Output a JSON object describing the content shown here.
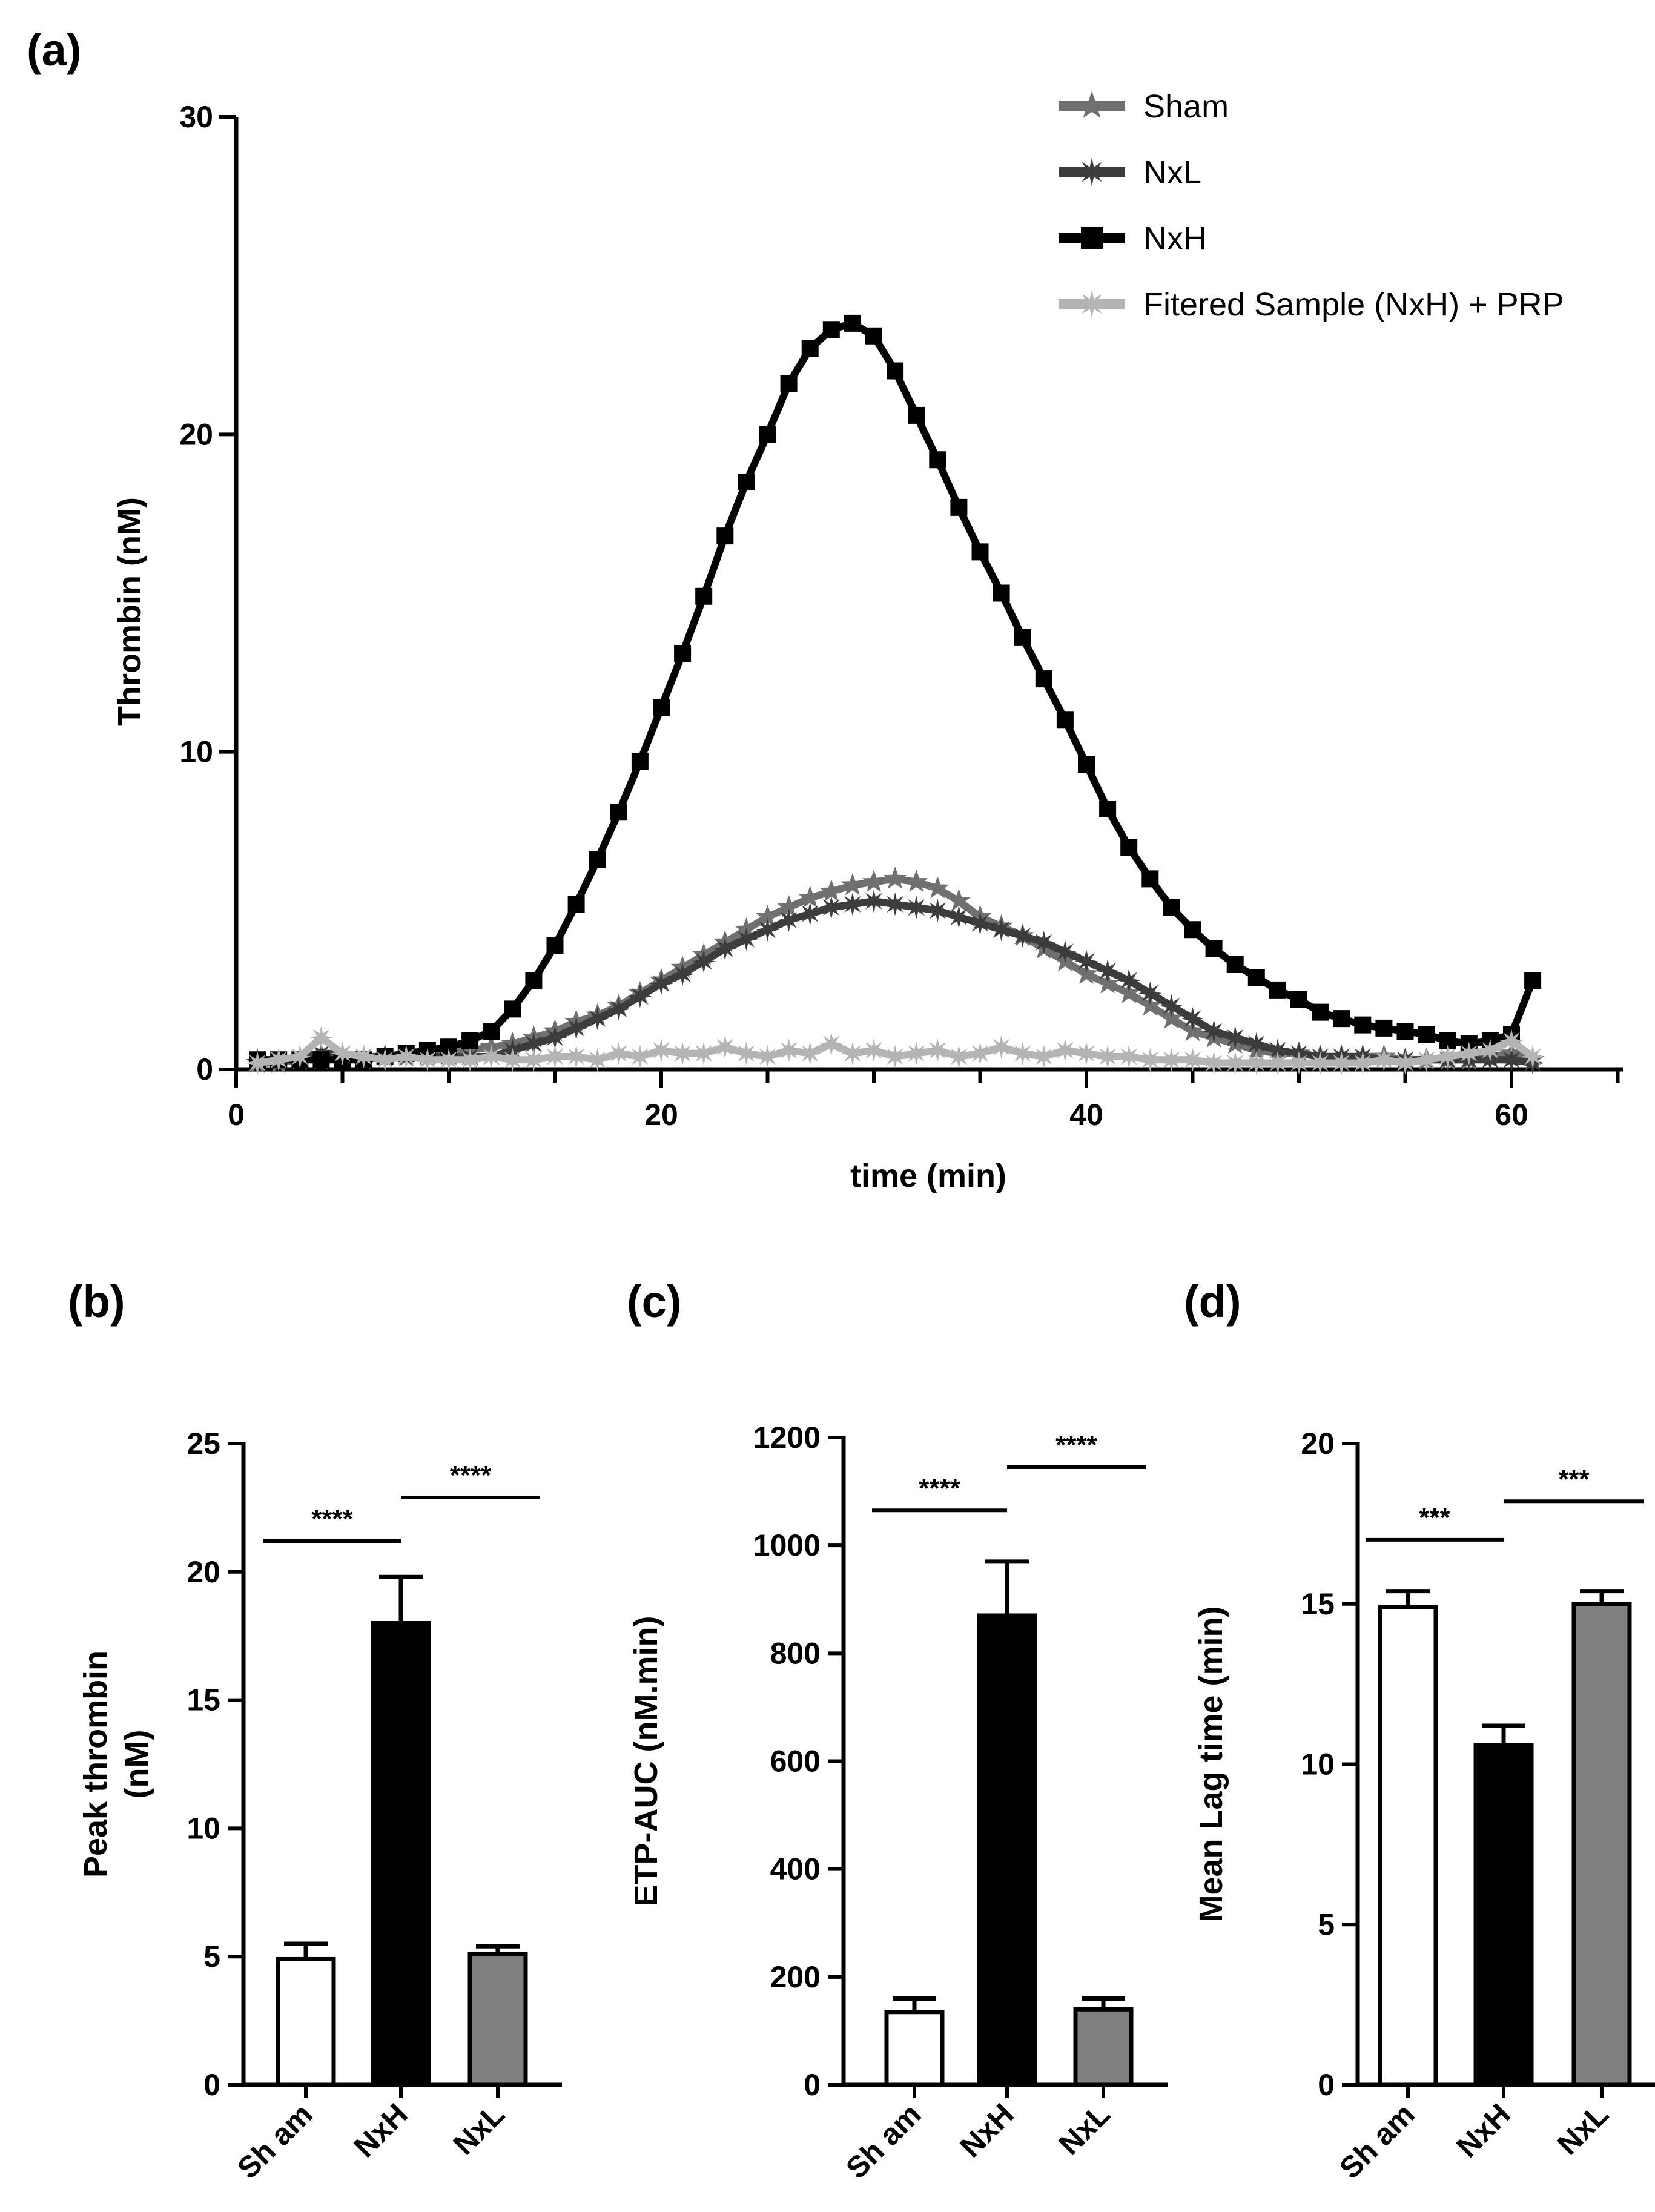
{
  "chart_data": [
    {
      "panel": "(a)",
      "type": "line",
      "xlabel": "time (min)",
      "ylabel": "Thrombin (nM)",
      "xlim": [
        0,
        65
      ],
      "ylim": [
        0,
        30
      ],
      "xticks": [
        0,
        20,
        40,
        60
      ],
      "yticks": [
        0,
        10,
        20,
        30
      ],
      "grid": false,
      "legend_position": "top-right",
      "series": [
        {
          "name": "Sham",
          "color": "#707070",
          "marker": "star",
          "x": [
            1,
            2,
            3,
            4,
            5,
            6,
            7,
            8,
            9,
            10,
            11,
            12,
            13,
            14,
            15,
            16,
            17,
            18,
            19,
            20,
            21,
            22,
            23,
            24,
            25,
            26,
            27,
            28,
            29,
            30,
            31,
            32,
            33,
            34,
            35,
            36,
            37,
            38,
            39,
            40,
            41,
            42,
            43,
            44,
            45,
            46,
            47,
            48,
            49,
            50,
            51,
            52,
            53,
            54,
            55,
            56,
            57,
            58,
            59,
            60,
            61
          ],
          "y": [
            0.2,
            0.2,
            0.3,
            0.3,
            0.4,
            0.3,
            0.4,
            0.4,
            0.5,
            0.5,
            0.6,
            0.7,
            0.8,
            1.0,
            1.2,
            1.5,
            1.7,
            2.0,
            2.4,
            2.8,
            3.2,
            3.6,
            4.0,
            4.4,
            4.8,
            5.1,
            5.4,
            5.6,
            5.8,
            5.9,
            6.0,
            5.9,
            5.7,
            5.3,
            4.8,
            4.5,
            4.2,
            3.8,
            3.4,
            3.0,
            2.7,
            2.4,
            2.0,
            1.6,
            1.2,
            1.0,
            0.8,
            0.6,
            0.5,
            0.5,
            0.4,
            0.4,
            0.4,
            0.4,
            0.3,
            0.3,
            0.3,
            0.3,
            0.4,
            0.5,
            0.3
          ]
        },
        {
          "name": "NxL",
          "color": "#3c3c3c",
          "marker": "asterisk",
          "x": [
            1,
            2,
            3,
            4,
            5,
            6,
            7,
            8,
            9,
            10,
            11,
            12,
            13,
            14,
            15,
            16,
            17,
            18,
            19,
            20,
            21,
            22,
            23,
            24,
            25,
            26,
            27,
            28,
            29,
            30,
            31,
            32,
            33,
            34,
            35,
            36,
            37,
            38,
            39,
            40,
            41,
            42,
            43,
            44,
            45,
            46,
            47,
            48,
            49,
            50,
            51,
            52,
            53,
            54,
            55,
            56,
            57,
            58,
            59,
            60,
            61
          ],
          "y": [
            0.3,
            0.3,
            0.4,
            0.5,
            0.5,
            0.4,
            0.4,
            0.4,
            0.4,
            0.4,
            0.4,
            0.4,
            0.6,
            0.8,
            1.0,
            1.3,
            1.6,
            1.9,
            2.3,
            2.7,
            3.0,
            3.4,
            3.8,
            4.1,
            4.4,
            4.7,
            4.9,
            5.1,
            5.2,
            5.3,
            5.2,
            5.1,
            5.0,
            4.8,
            4.6,
            4.4,
            4.2,
            4.0,
            3.7,
            3.4,
            3.1,
            2.8,
            2.4,
            2.0,
            1.6,
            1.2,
            1.0,
            0.8,
            0.6,
            0.5,
            0.4,
            0.4,
            0.4,
            0.3,
            0.3,
            0.3,
            0.3,
            0.3,
            0.3,
            0.3,
            0.2
          ]
        },
        {
          "name": "NxH",
          "color": "#000000",
          "marker": "square",
          "x": [
            1,
            2,
            3,
            4,
            5,
            6,
            7,
            8,
            9,
            10,
            11,
            12,
            13,
            14,
            15,
            16,
            17,
            18,
            19,
            20,
            21,
            22,
            23,
            24,
            25,
            26,
            27,
            28,
            29,
            30,
            31,
            32,
            33,
            34,
            35,
            36,
            37,
            38,
            39,
            40,
            41,
            42,
            43,
            44,
            45,
            46,
            47,
            48,
            49,
            50,
            51,
            52,
            53,
            54,
            55,
            56,
            57,
            58,
            59,
            60,
            61
          ],
          "y": [
            0.3,
            0.3,
            0.3,
            0.3,
            0.3,
            0.3,
            0.4,
            0.5,
            0.6,
            0.7,
            0.9,
            1.2,
            1.9,
            2.8,
            3.9,
            5.2,
            6.6,
            8.1,
            9.7,
            11.4,
            13.1,
            14.9,
            16.8,
            18.5,
            20.0,
            21.6,
            22.7,
            23.3,
            23.5,
            23.1,
            22.0,
            20.6,
            19.2,
            17.7,
            16.3,
            15.0,
            13.6,
            12.3,
            11.0,
            9.6,
            8.2,
            7.0,
            6.0,
            5.1,
            4.4,
            3.8,
            3.3,
            2.9,
            2.5,
            2.2,
            1.8,
            1.6,
            1.4,
            1.3,
            1.2,
            1.1,
            0.9,
            0.8,
            0.9,
            1.1,
            2.8
          ]
        },
        {
          "name": "Fitered Sample (NxH) + PRP",
          "color": "#b4b4b4",
          "marker": "asterisk",
          "x": [
            1,
            2,
            3,
            4,
            5,
            6,
            7,
            8,
            9,
            10,
            11,
            12,
            13,
            14,
            15,
            16,
            17,
            18,
            19,
            20,
            21,
            22,
            23,
            24,
            25,
            26,
            27,
            28,
            29,
            30,
            31,
            32,
            33,
            34,
            35,
            36,
            37,
            38,
            39,
            40,
            41,
            42,
            43,
            44,
            45,
            46,
            47,
            48,
            49,
            50,
            51,
            52,
            53,
            54,
            55,
            56,
            57,
            58,
            59,
            60,
            61
          ],
          "y": [
            0.2,
            0.3,
            0.4,
            1.0,
            0.5,
            0.4,
            0.3,
            0.4,
            0.3,
            0.3,
            0.3,
            0.4,
            0.3,
            0.3,
            0.4,
            0.4,
            0.3,
            0.5,
            0.4,
            0.6,
            0.5,
            0.5,
            0.7,
            0.5,
            0.4,
            0.6,
            0.5,
            0.8,
            0.5,
            0.6,
            0.4,
            0.5,
            0.6,
            0.4,
            0.5,
            0.7,
            0.5,
            0.4,
            0.6,
            0.5,
            0.4,
            0.4,
            0.3,
            0.3,
            0.3,
            0.2,
            0.2,
            0.2,
            0.2,
            0.2,
            0.2,
            0.2,
            0.2,
            0.3,
            0.2,
            0.3,
            0.4,
            0.5,
            0.6,
            0.9,
            0.4
          ]
        }
      ]
    },
    {
      "panel": "(b)",
      "type": "bar",
      "ylabel": [
        "Peak thrombin",
        "(nM)"
      ],
      "xlabel": "",
      "ylim": [
        0,
        25
      ],
      "yticks": [
        0,
        5,
        10,
        15,
        20,
        25
      ],
      "categories": [
        "Sh am",
        "NxH",
        "NxL"
      ],
      "values": [
        4.9,
        18.0,
        5.1
      ],
      "errors": [
        0.6,
        1.8,
        0.3
      ],
      "colors": [
        "#ffffff",
        "#000000",
        "#808080"
      ],
      "significance": [
        {
          "from": 0,
          "to": 1,
          "label": "****",
          "y": 21.2
        },
        {
          "from": 1,
          "to": 2,
          "label": "****",
          "y": 22.9
        }
      ]
    },
    {
      "panel": "(c)",
      "type": "bar",
      "ylabel": [
        "ETP-AUC (nM.min)"
      ],
      "xlabel": "",
      "ylim": [
        0,
        1200
      ],
      "yticks": [
        0,
        200,
        400,
        600,
        800,
        1000,
        1200
      ],
      "categories": [
        "Sh am",
        "NxH",
        "NxL"
      ],
      "values": [
        135,
        870,
        140
      ],
      "errors": [
        25,
        100,
        20
      ],
      "colors": [
        "#ffffff",
        "#000000",
        "#808080"
      ],
      "significance": [
        {
          "from": 0,
          "to": 1,
          "label": "****",
          "y": 1065
        },
        {
          "from": 1,
          "to": 2,
          "label": "****",
          "y": 1145
        }
      ]
    },
    {
      "panel": "(d)",
      "type": "bar",
      "ylabel": [
        "Mean Lag time (min)"
      ],
      "xlabel": "",
      "ylim": [
        0,
        20
      ],
      "yticks": [
        0,
        5,
        10,
        15,
        20
      ],
      "categories": [
        "Sh am",
        "NxH",
        "NxL"
      ],
      "values": [
        14.9,
        10.6,
        15.0
      ],
      "errors": [
        0.5,
        0.6,
        0.4
      ],
      "colors": [
        "#ffffff",
        "#000000",
        "#808080"
      ],
      "significance": [
        {
          "from": 0,
          "to": 1,
          "label": "***",
          "y": 17.0
        },
        {
          "from": 1,
          "to": 2,
          "label": "***",
          "y": 18.2
        }
      ]
    }
  ]
}
